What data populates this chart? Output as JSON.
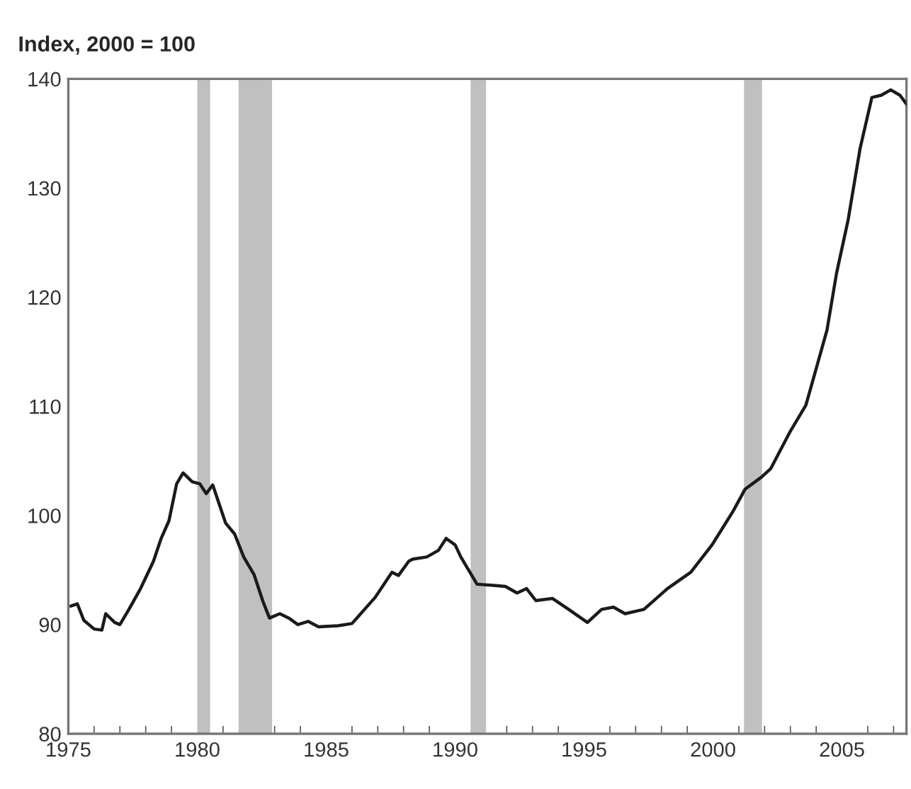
{
  "chart_data": {
    "type": "line",
    "title": "Index, 2000 = 100",
    "x": [
      1975.1,
      1975.35,
      1975.6,
      1976.0,
      1976.3,
      1976.45,
      1976.8,
      1977.0,
      1977.35,
      1977.8,
      1978.3,
      1978.6,
      1978.9,
      1979.2,
      1979.45,
      1979.8,
      1980.1,
      1980.35,
      1980.6,
      1980.8,
      1981.1,
      1981.45,
      1981.8,
      1982.2,
      1982.55,
      1982.8,
      1983.2,
      1983.55,
      1983.9,
      1984.3,
      1984.7,
      1985.45,
      1986.0,
      1986.45,
      1986.9,
      1987.55,
      1987.8,
      1988.2,
      1988.35,
      1988.9,
      1989.35,
      1989.65,
      1990.0,
      1990.22,
      1990.85,
      1991.49,
      1991.95,
      1992.4,
      1992.77,
      1993.13,
      1993.77,
      1994.4,
      1995.13,
      1995.68,
      1996.14,
      1996.59,
      1997.32,
      1998.23,
      1999.14,
      1999.96,
      2000.78,
      2001.24,
      2001.87,
      2002.24,
      2002.97,
      2003.6,
      2003.97,
      2004.42,
      2004.79,
      2005.24,
      2005.7,
      2006.16,
      2006.52,
      2006.89,
      2007.25,
      2007.5
    ],
    "series": [
      {
        "color": "#1a1a1a",
        "values": [
          91.7,
          91.9,
          90.4,
          89.6,
          89.5,
          91.0,
          90.2,
          90.0,
          91.4,
          93.3,
          95.8,
          97.9,
          99.5,
          102.9,
          103.9,
          103.1,
          102.9,
          102.0,
          102.8,
          101.4,
          99.3,
          98.3,
          96.2,
          94.6,
          92.1,
          90.6,
          91.0,
          90.6,
          90.0,
          90.3,
          89.8,
          89.9,
          90.1,
          91.3,
          92.5,
          94.8,
          94.5,
          95.8,
          96.0,
          96.2,
          96.8,
          97.9,
          97.3,
          96.2,
          93.7,
          93.6,
          93.5,
          92.9,
          93.3,
          92.2,
          92.4,
          91.4,
          90.2,
          91.4,
          91.6,
          91.0,
          91.4,
          93.3,
          94.8,
          97.3,
          100.4,
          102.4,
          103.5,
          104.3,
          107.6,
          110.1,
          113.2,
          117.0,
          122.2,
          127.1,
          133.6,
          138.3,
          138.5,
          139.0,
          138.5,
          137.7
        ]
      }
    ],
    "xlim": [
      1975,
      2007.5
    ],
    "xticks": [
      1975,
      1980,
      1985,
      1990,
      1995,
      2000,
      2005
    ],
    "ylim": [
      80,
      140
    ],
    "yticks": [
      80,
      90,
      100,
      110,
      120,
      130,
      140
    ],
    "bands": [
      {
        "axis": "x",
        "from": 1980.0,
        "to": 1980.5,
        "color": "#c0c0c0"
      },
      {
        "axis": "x",
        "from": 1981.6,
        "to": 1982.9,
        "color": "#c0c0c0"
      },
      {
        "axis": "x",
        "from": 1990.6,
        "to": 1991.2,
        "color": "#c0c0c0"
      },
      {
        "axis": "x",
        "from": 2001.2,
        "to": 2001.9,
        "color": "#c0c0c0"
      }
    ],
    "grid": false,
    "legend": false,
    "marker": "none",
    "line_style": "solid"
  }
}
